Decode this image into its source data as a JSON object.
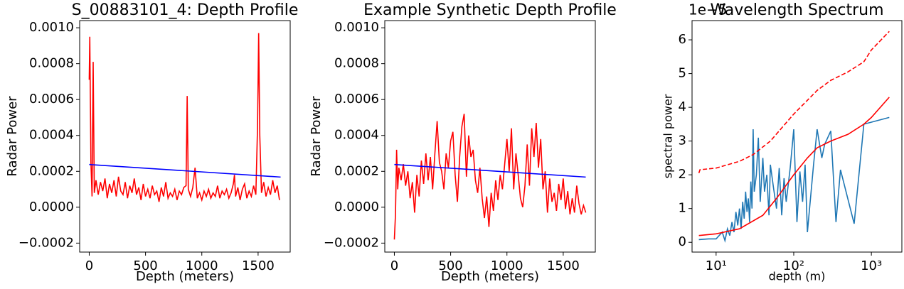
{
  "chart_data": [
    {
      "type": "line",
      "title": "S_00883101_4: Depth Profile",
      "xlabel": "Depth (meters)",
      "ylabel": "Radar Power",
      "xlim": [
        -85,
        1785
      ],
      "xticks": [
        0,
        500,
        1000,
        1500
      ],
      "ylim": [
        -0.00025,
        0.00104
      ],
      "yticks": [
        {
          "value": -0.0002,
          "label": "−0.0002"
        },
        {
          "value": 0,
          "label": "0.0000"
        },
        0.0002,
        0.0004,
        0.0006,
        0.0008,
        {
          "value": 0.001,
          "label": "0.0010"
        }
      ],
      "series": [
        {
          "color": "#ff0000",
          "x": [
            0,
            5,
            15,
            25,
            35,
            45,
            60,
            80,
            100,
            120,
            140,
            160,
            180,
            200,
            220,
            240,
            260,
            280,
            300,
            320,
            340,
            360,
            380,
            400,
            420,
            440,
            460,
            480,
            500,
            520,
            540,
            560,
            580,
            600,
            620,
            640,
            660,
            680,
            700,
            720,
            740,
            760,
            780,
            800,
            820,
            840,
            860,
            870,
            880,
            900,
            920,
            940,
            960,
            980,
            1000,
            1020,
            1040,
            1060,
            1080,
            1100,
            1120,
            1140,
            1160,
            1180,
            1200,
            1220,
            1240,
            1260,
            1280,
            1290,
            1300,
            1320,
            1340,
            1360,
            1380,
            1400,
            1420,
            1440,
            1460,
            1480,
            1495,
            1505,
            1515,
            1530,
            1550,
            1570,
            1590,
            1610,
            1630,
            1650,
            1670,
            1690
          ],
          "values": [
            0.00071,
            0.00095,
            0.00025,
            6e-05,
            0.00081,
            8e-05,
            0.00015,
            7e-05,
            0.00014,
            9e-05,
            0.00016,
            5e-05,
            0.00013,
            8e-05,
            0.00015,
            6e-05,
            0.00017,
            9e-05,
            7e-05,
            0.00014,
            5e-05,
            0.00012,
            8e-05,
            0.00016,
            7e-05,
            0.00011,
            4e-05,
            0.00013,
            6e-05,
            0.0001,
            5e-05,
            0.00012,
            7e-05,
            9e-05,
            3e-05,
            0.00011,
            6e-05,
            0.00014,
            5e-05,
            8e-05,
            6e-05,
            0.0001,
            4e-05,
            9e-05,
            7e-05,
            0.00011,
            0.00012,
            0.00062,
            0.0001,
            6e-05,
            0.00011,
            0.00022,
            5e-05,
            8e-05,
            4e-05,
            9e-05,
            6e-05,
            0.0001,
            5e-05,
            8e-05,
            6e-05,
            0.00012,
            5e-05,
            9e-05,
            7e-05,
            0.0001,
            5e-05,
            8e-05,
            0.00013,
            0.00018,
            6e-05,
            0.00011,
            4e-05,
            0.0001,
            0.00013,
            5e-05,
            9e-05,
            6e-05,
            0.00012,
            7e-05,
            0.00045,
            0.00097,
            0.0004,
            8e-05,
            0.00014,
            6e-05,
            0.00011,
            7e-05,
            0.00015,
            8e-05,
            0.00012,
            4e-05
          ]
        },
        {
          "color": "#0000ff",
          "x": [
            0,
            1700
          ],
          "values": [
            0.000238,
            0.000168
          ]
        }
      ]
    },
    {
      "type": "line",
      "title": "Example Synthetic Depth Profile",
      "xlabel": "Depth (meters)",
      "ylabel": "Radar Power",
      "xlim": [
        -85,
        1785
      ],
      "xticks": [
        0,
        500,
        1000,
        1500
      ],
      "ylim": [
        -0.00025,
        0.00104
      ],
      "yticks": [
        {
          "value": -0.0002,
          "label": "−0.0002"
        },
        {
          "value": 0,
          "label": "0.0000"
        },
        0.0002,
        0.0004,
        0.0006,
        0.0008,
        {
          "value": 0.001,
          "label": "0.0010"
        }
      ],
      "series": [
        {
          "color": "#ff0000",
          "x": [
            0,
            10,
            20,
            30,
            40,
            60,
            80,
            100,
            120,
            140,
            160,
            180,
            200,
            220,
            240,
            260,
            280,
            300,
            320,
            340,
            360,
            380,
            400,
            420,
            440,
            460,
            480,
            500,
            520,
            540,
            560,
            580,
            600,
            620,
            640,
            660,
            680,
            700,
            720,
            740,
            760,
            780,
            800,
            820,
            840,
            860,
            880,
            900,
            920,
            940,
            960,
            980,
            1000,
            1020,
            1040,
            1060,
            1080,
            1100,
            1120,
            1140,
            1160,
            1180,
            1200,
            1220,
            1240,
            1260,
            1280,
            1300,
            1320,
            1340,
            1360,
            1380,
            1400,
            1420,
            1440,
            1460,
            1480,
            1500,
            1520,
            1540,
            1560,
            1580,
            1600,
            1620,
            1640,
            1660,
            1680,
            1700
          ],
          "values": [
            -0.00018,
            -4e-05,
            0.00032,
            0.0001,
            0.00022,
            0.00015,
            0.00024,
            0.00012,
            0.0002,
            5e-05,
            0.00014,
            -3e-05,
            0.00018,
            6e-05,
            0.00026,
            0.00013,
            0.0003,
            0.00015,
            0.00028,
            0.0001,
            0.0003,
            0.00048,
            0.00025,
            0.0002,
            0.0001,
            0.0003,
            0.00022,
            0.00037,
            0.00042,
            0.00018,
            3e-05,
            0.00028,
            0.00045,
            0.00052,
            0.00017,
            0.0004,
            0.00028,
            0.00032,
            0.00015,
            8e-05,
            0.00022,
            5e-05,
            -6e-05,
            6e-05,
            -0.00011,
            8e-05,
            -2e-05,
            0.00015,
            4e-05,
            0.00018,
            0.0001,
            0.00024,
            0.00038,
            0.0002,
            0.00044,
            0.0001,
            0.0003,
            0.00018,
            5e-05,
            0,
            0.00012,
            0.00035,
            0.00012,
            0.00044,
            0.00028,
            0.00047,
            0.00022,
            0.00038,
            0.0001,
            0.0002,
            -3e-05,
            0.00016,
            3e-05,
            8e-05,
            -2e-05,
            0.00013,
            4e-05,
            0.00016,
            -1e-05,
            9e-05,
            -4e-05,
            5e-05,
            -3e-05,
            0.00012,
            2e-05,
            -4e-05,
            1e-05,
            -3e-05
          ]
        },
        {
          "color": "#0000ff",
          "x": [
            0,
            1700
          ],
          "values": [
            0.000238,
            0.000168
          ]
        }
      ]
    },
    {
      "type": "line",
      "title": "Wavelength Spectrum",
      "xlabel": "depth (m)",
      "ylabel": "spectral power",
      "offset_text": "1e−5",
      "xscale": "log",
      "xlim": [
        4.9,
        2470
      ],
      "xticks": [
        {
          "value": 10,
          "label": "10¹"
        },
        {
          "value": 100,
          "label": "10²"
        },
        {
          "value": 1000,
          "label": "10³"
        }
      ],
      "ylim": [
        -0.29,
        6.57
      ],
      "yticks": [
        0,
        1,
        2,
        3,
        4,
        5,
        6
      ],
      "series": [
        {
          "color": "#1f77b4",
          "x": [
            6,
            8,
            10,
            12,
            13,
            14,
            15,
            16,
            17,
            18,
            19,
            20,
            21,
            22,
            23,
            24,
            25,
            26,
            27,
            28,
            29,
            30,
            31,
            33,
            35,
            37,
            40,
            42,
            45,
            48,
            50,
            55,
            60,
            65,
            70,
            75,
            80,
            90,
            100,
            110,
            120,
            130,
            140,
            150,
            180,
            200,
            230,
            250,
            300,
            350,
            400,
            600,
            800,
            1700
          ],
          "values": [
            0.08,
            0.1,
            0.1,
            0.3,
            0.05,
            0.4,
            0.2,
            0.6,
            0.3,
            0.9,
            0.5,
            1.0,
            0.4,
            1.2,
            0.7,
            1.5,
            0.9,
            1.3,
            0.6,
            1.8,
            1.0,
            3.35,
            1.5,
            2.0,
            3.1,
            1.2,
            2.5,
            1.5,
            2.0,
            0.8,
            2.3,
            1.6,
            1.0,
            2.2,
            0.8,
            1.9,
            1.2,
            2.2,
            3.35,
            0.6,
            2.1,
            1.2,
            2.3,
            0.3,
            2.3,
            3.35,
            2.5,
            2.9,
            3.3,
            0.6,
            2.15,
            0.55,
            3.5,
            3.7
          ]
        },
        {
          "color": "#ff0000",
          "x": [
            6,
            10,
            20,
            40,
            60,
            100,
            150,
            200,
            300,
            500,
            800,
            1000,
            1700
          ],
          "values": [
            0.2,
            0.25,
            0.4,
            0.8,
            1.3,
            2.0,
            2.5,
            2.8,
            3.0,
            3.2,
            3.5,
            3.7,
            4.3
          ]
        },
        {
          "color": "#ff0000",
          "linestyle": "dashed",
          "x": [
            6,
            6.2,
            10,
            20,
            30,
            50,
            100,
            200,
            300,
            500,
            800,
            1000,
            1700
          ],
          "values": [
            2.05,
            2.15,
            2.2,
            2.4,
            2.6,
            3.0,
            3.8,
            4.5,
            4.8,
            5.05,
            5.35,
            5.7,
            6.25
          ]
        }
      ]
    }
  ]
}
